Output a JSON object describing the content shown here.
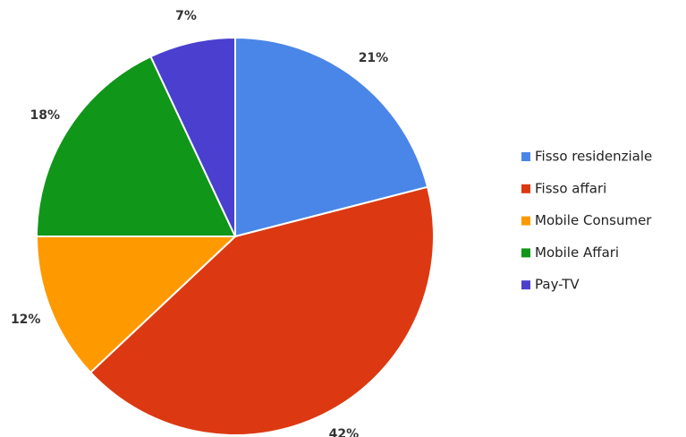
{
  "chart_data": {
    "type": "pie",
    "categories": [
      "Fisso residenziale",
      "Fisso affari",
      "Mobile Consumer",
      "Mobile Affari",
      "Pay-TV"
    ],
    "values": [
      21,
      42,
      12,
      18,
      7
    ],
    "value_labels": [
      "21%",
      "42%",
      "12%",
      "18%",
      "7%"
    ],
    "colors": [
      "#4a86e8",
      "#dc3912",
      "#ff9900",
      "#109618",
      "#4a3fcf"
    ],
    "legend": "right"
  }
}
